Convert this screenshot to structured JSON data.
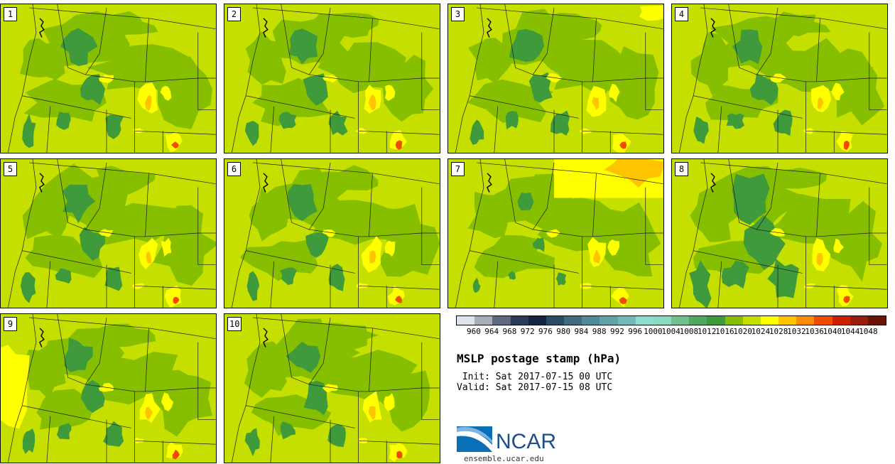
{
  "title": "MSLP postage stamp (hPa)",
  "init_label": " Init: Sat 2017-07-15 00 UTC",
  "valid_label": "Valid: Sat 2017-07-15 08 UTC",
  "logo_text": "NCAR",
  "url": "ensemble.ucar.edu",
  "panels": [
    {
      "label": "1"
    },
    {
      "label": "2"
    },
    {
      "label": "3"
    },
    {
      "label": "4"
    },
    {
      "label": "5"
    },
    {
      "label": "6"
    },
    {
      "label": "7"
    },
    {
      "label": "8"
    },
    {
      "label": "9"
    },
    {
      "label": "10"
    }
  ],
  "colorbar": {
    "ticks": [
      "960",
      "964",
      "968",
      "972",
      "976",
      "980",
      "984",
      "988",
      "992",
      "996",
      "1000",
      "1004",
      "1008",
      "1012",
      "1016",
      "1020",
      "1024",
      "1028",
      "1032",
      "1036",
      "1040",
      "1044",
      "1048"
    ],
    "colors": [
      "#dfe3ea",
      "#a8adb8",
      "#5d6a80",
      "#2b3a57",
      "#14233f",
      "#2a4a68",
      "#3f6a80",
      "#4f8a98",
      "#5fa3a8",
      "#73b9b8",
      "#8fdcd0",
      "#86dcc0",
      "#6fc08e",
      "#4fa85f",
      "#3f9a3c",
      "#86bf00",
      "#c5e000",
      "#ffff00",
      "#ffc400",
      "#ff8c00",
      "#f04c00",
      "#cc2000",
      "#9b1c0c",
      "#6a1308"
    ]
  },
  "colors": {
    "base": "#c5e000",
    "mid": "#86bf00",
    "low": "#3f9a3c",
    "high": "#ffff00",
    "higher": "#ffc400",
    "highest": "#f04c00"
  }
}
